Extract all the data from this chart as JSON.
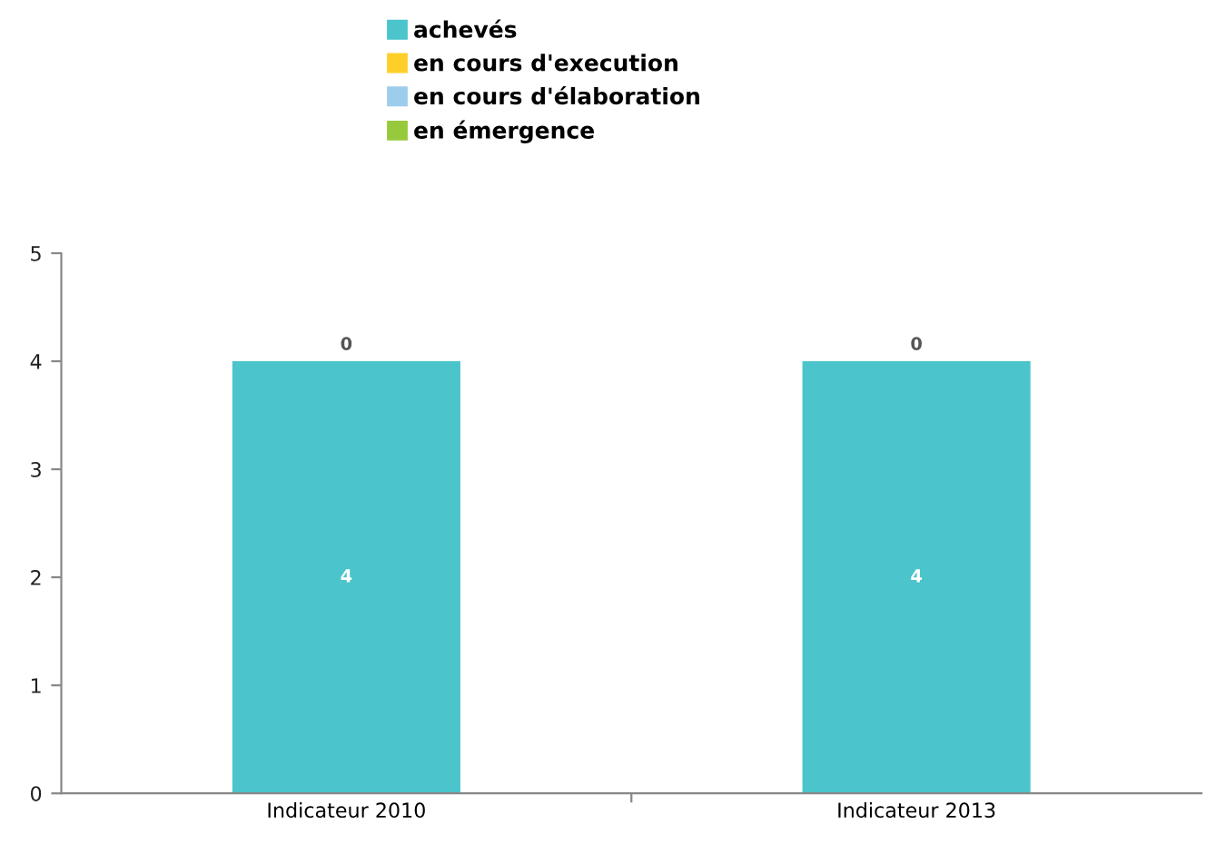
{
  "chart_data": {
    "type": "bar",
    "stacked": true,
    "categories": [
      "Indicateur 2010",
      "Indicateur 2013"
    ],
    "series": [
      {
        "name": "achevés",
        "color": "#4bc4cb",
        "values": [
          4,
          4
        ],
        "value_labels": [
          "4",
          "4"
        ]
      },
      {
        "name": "en cours d'execution",
        "color": "#fecf29",
        "values": [
          0,
          0
        ],
        "value_labels": [
          null,
          null
        ]
      },
      {
        "name": "en cours d'élaboration",
        "color": "#9dcdec",
        "values": [
          0,
          0
        ],
        "value_labels": [
          null,
          null
        ]
      },
      {
        "name": "en émergence",
        "color": "#97c93d",
        "values": [
          0,
          0
        ],
        "value_labels": [
          "0",
          "0"
        ]
      }
    ],
    "ylim": [
      0,
      5
    ],
    "yticks": [
      0,
      1,
      2,
      3,
      4,
      5
    ],
    "grid": false,
    "legend": "top"
  }
}
